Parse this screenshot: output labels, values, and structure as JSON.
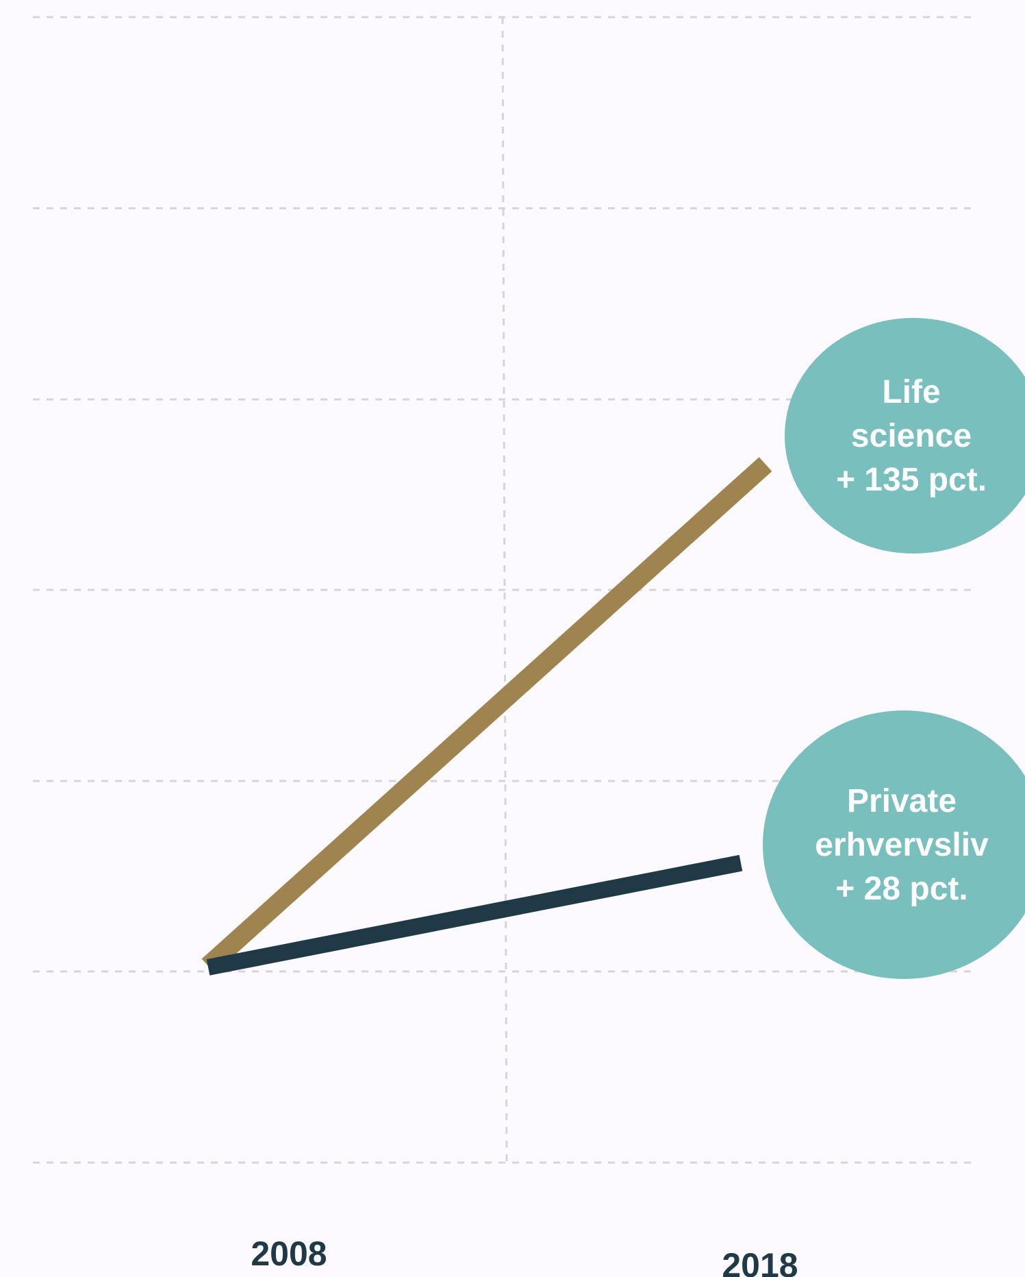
{
  "chart_data": {
    "type": "line",
    "x": [
      "2008",
      "2018"
    ],
    "series": [
      {
        "name": "Life science",
        "values": [
          100,
          235
        ],
        "color": "#a0844f",
        "annotation": [
          "Life",
          "science",
          "+ 135 pct."
        ]
      },
      {
        "name": "Private erhvervsliv",
        "values": [
          100,
          128
        ],
        "color": "#1f3a46",
        "annotation": [
          "Private",
          "erhvervsliv",
          "+ 28 pct."
        ]
      }
    ],
    "grid": true,
    "legend": "none",
    "annotation_color": "#79bfbd"
  }
}
